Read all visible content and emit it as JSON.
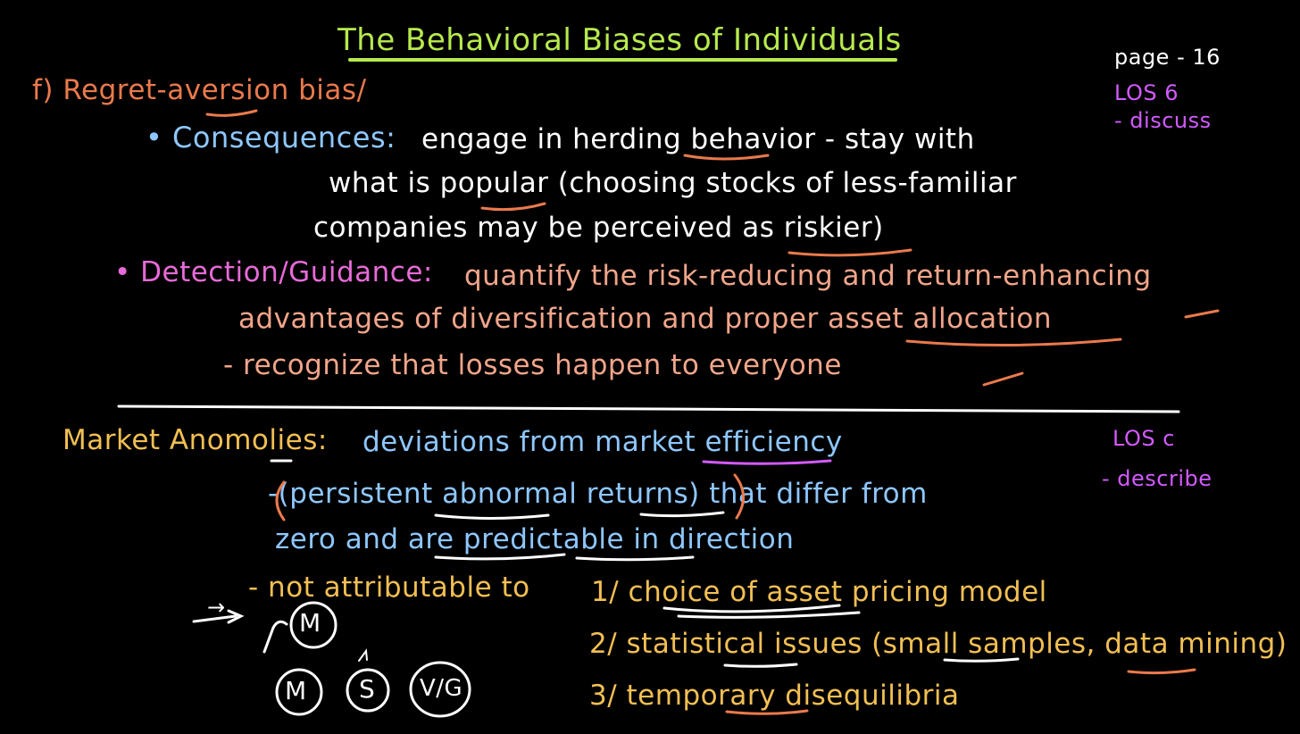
{
  "title": "The Behavioral Biases of Individuals",
  "meta": {
    "page": "page - 16",
    "los_top": "LOS 6",
    "los_top_verb": "- discuss",
    "los_bottom": "LOS c",
    "los_bottom_verb": "- describe"
  },
  "section_top": {
    "heading": "f) Regret-aversion bias/",
    "consequences_label": "• Consequences:",
    "consequences_line1": "engage in herding behavior - stay with",
    "consequences_line2": "what is popular (choosing stocks of less-familiar",
    "consequences_line3": "companies may be perceived as riskier)",
    "detection_label": "• Detection/Guidance:",
    "detection_line1": "quantify the risk-reducing and return-enhancing",
    "detection_line2": "advantages of diversification and proper asset allocation",
    "detection_line3": "- recognize that losses happen to everyone"
  },
  "section_bottom": {
    "label": "Market Anomolies:",
    "definition": "deviations from market efficiency",
    "line1": "-(persistent abnormal returns) that differ from",
    "line2": "zero and are predictable in direction",
    "line3_prefix": "- not attributable to",
    "reason1": "1/ choice of asset pricing model",
    "reason2": "2/ statistical issues (small samples, data mining)",
    "reason3": "3/ temporary disequilibria"
  },
  "sketch": {
    "arrow": "→",
    "circle1": "M",
    "circle2": "M",
    "circle3": "S",
    "circle4": "V/G"
  },
  "colors": {
    "background": "#000000",
    "title": "#b7ea4d",
    "orange": "#ea7a4c",
    "blue": "#8ec7ff",
    "white": "#ffffff",
    "pink": "#e76ad8",
    "salmon": "#f1a58a",
    "yellow": "#f2bf53",
    "purple": "#d35aff"
  }
}
